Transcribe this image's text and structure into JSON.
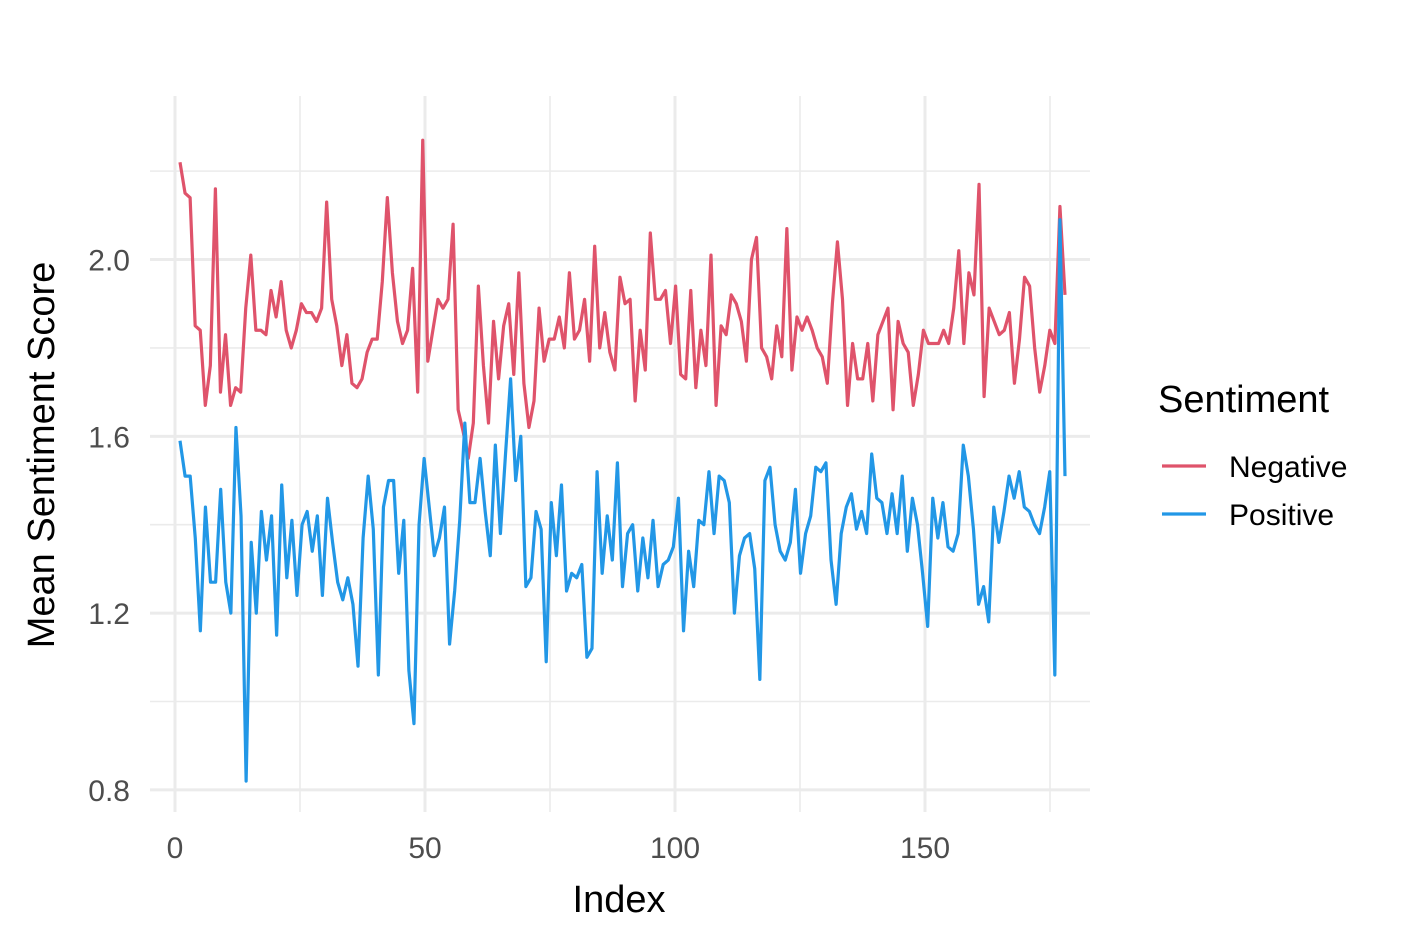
{
  "chart_data": {
    "type": "line",
    "title": "",
    "xlabel": "Index",
    "ylabel": "Mean Sentiment Score",
    "xlim": [
      -5,
      183
    ],
    "ylim": [
      0.75,
      2.37
    ],
    "x_ticks": [
      0,
      50,
      100,
      150
    ],
    "x_tick_labels": [
      "0",
      "50",
      "100",
      "150"
    ],
    "y_ticks": [
      0.8,
      1.2,
      1.6,
      2.0
    ],
    "y_tick_labels": [
      "0.8",
      "1.2",
      "1.6",
      "2.0"
    ],
    "grid": true,
    "legend": {
      "title": "Sentiment",
      "position": "right"
    },
    "colors": {
      "Negative": "#DF536B",
      "Positive": "#2297E6",
      "grid": "#EBEBEB"
    },
    "series": [
      {
        "name": "Negative",
        "color": "#DF536B",
        "x_start": 1,
        "values": [
          2.22,
          2.15,
          2.14,
          1.85,
          1.84,
          1.67,
          1.76,
          2.16,
          1.7,
          1.83,
          1.67,
          1.71,
          1.7,
          1.89,
          2.01,
          1.84,
          1.84,
          1.83,
          1.93,
          1.87,
          1.95,
          1.84,
          1.8,
          1.84,
          1.9,
          1.88,
          1.88,
          1.86,
          1.89,
          2.13,
          1.91,
          1.85,
          1.76,
          1.83,
          1.72,
          1.71,
          1.73,
          1.79,
          1.82,
          1.82,
          1.95,
          2.14,
          1.97,
          1.86,
          1.81,
          1.84,
          1.98,
          1.7,
          2.27,
          1.77,
          1.84,
          1.91,
          1.89,
          1.91,
          2.08,
          1.66,
          1.61,
          1.55,
          1.63,
          1.94,
          1.76,
          1.63,
          1.86,
          1.73,
          1.85,
          1.9,
          1.74,
          1.97,
          1.72,
          1.62,
          1.68,
          1.89,
          1.77,
          1.82,
          1.82,
          1.87,
          1.8,
          1.97,
          1.82,
          1.84,
          1.91,
          1.77,
          2.03,
          1.8,
          1.88,
          1.79,
          1.75,
          1.96,
          1.9,
          1.91,
          1.68,
          1.84,
          1.75,
          2.06,
          1.91,
          1.91,
          1.93,
          1.81,
          1.94,
          1.74,
          1.73,
          1.93,
          1.71,
          1.84,
          1.76,
          2.01,
          1.67,
          1.85,
          1.83,
          1.92,
          1.9,
          1.86,
          1.77,
          2.0,
          2.05,
          1.8,
          1.78,
          1.73,
          1.85,
          1.78,
          2.07,
          1.75,
          1.87,
          1.84,
          1.87,
          1.84,
          1.8,
          1.78,
          1.72,
          1.9,
          2.04,
          1.91,
          1.67,
          1.81,
          1.73,
          1.73,
          1.81,
          1.68,
          1.83,
          1.86,
          1.89,
          1.66,
          1.86,
          1.81,
          1.79,
          1.67,
          1.74,
          1.84,
          1.81,
          1.81,
          1.81,
          1.84,
          1.81,
          1.89,
          2.02,
          1.81,
          1.97,
          1.92,
          2.17,
          1.69,
          1.89,
          1.86,
          1.83,
          1.84,
          1.88,
          1.72,
          1.82,
          1.96,
          1.94,
          1.8,
          1.7,
          1.76,
          1.84,
          1.81,
          2.12,
          1.92
        ],
        "x_end": 178
      },
      {
        "name": "Positive",
        "color": "#2297E6",
        "x_start": 1,
        "values": [
          1.59,
          1.51,
          1.51,
          1.37,
          1.16,
          1.44,
          1.27,
          1.27,
          1.48,
          1.27,
          1.2,
          1.62,
          1.42,
          0.82,
          1.36,
          1.2,
          1.43,
          1.32,
          1.42,
          1.15,
          1.49,
          1.28,
          1.41,
          1.24,
          1.4,
          1.43,
          1.34,
          1.42,
          1.24,
          1.46,
          1.36,
          1.27,
          1.23,
          1.28,
          1.22,
          1.08,
          1.37,
          1.51,
          1.39,
          1.06,
          1.44,
          1.5,
          1.5,
          1.29,
          1.41,
          1.07,
          0.95,
          1.4,
          1.55,
          1.44,
          1.33,
          1.37,
          1.44,
          1.13,
          1.25,
          1.41,
          1.63,
          1.45,
          1.45,
          1.55,
          1.43,
          1.33,
          1.58,
          1.38,
          1.56,
          1.73,
          1.5,
          1.6,
          1.26,
          1.28,
          1.43,
          1.39,
          1.09,
          1.45,
          1.33,
          1.49,
          1.25,
          1.29,
          1.28,
          1.31,
          1.1,
          1.12,
          1.52,
          1.29,
          1.42,
          1.32,
          1.54,
          1.26,
          1.38,
          1.4,
          1.25,
          1.37,
          1.28,
          1.41,
          1.26,
          1.31,
          1.32,
          1.35,
          1.46,
          1.16,
          1.34,
          1.26,
          1.41,
          1.4,
          1.52,
          1.38,
          1.51,
          1.5,
          1.45,
          1.2,
          1.33,
          1.37,
          1.38,
          1.3,
          1.05,
          1.5,
          1.53,
          1.4,
          1.34,
          1.32,
          1.36,
          1.48,
          1.29,
          1.38,
          1.42,
          1.53,
          1.52,
          1.54,
          1.32,
          1.22,
          1.38,
          1.44,
          1.47,
          1.39,
          1.43,
          1.38,
          1.56,
          1.46,
          1.45,
          1.38,
          1.47,
          1.38,
          1.51,
          1.34,
          1.46,
          1.4,
          1.29,
          1.17,
          1.46,
          1.37,
          1.45,
          1.35,
          1.34,
          1.38,
          1.58,
          1.51,
          1.39,
          1.22,
          1.26,
          1.18,
          1.44,
          1.36,
          1.43,
          1.51,
          1.46,
          1.52,
          1.44,
          1.43,
          1.4,
          1.38,
          1.44,
          1.52,
          1.06,
          2.09,
          1.51
        ],
        "x_end": 178
      }
    ]
  }
}
